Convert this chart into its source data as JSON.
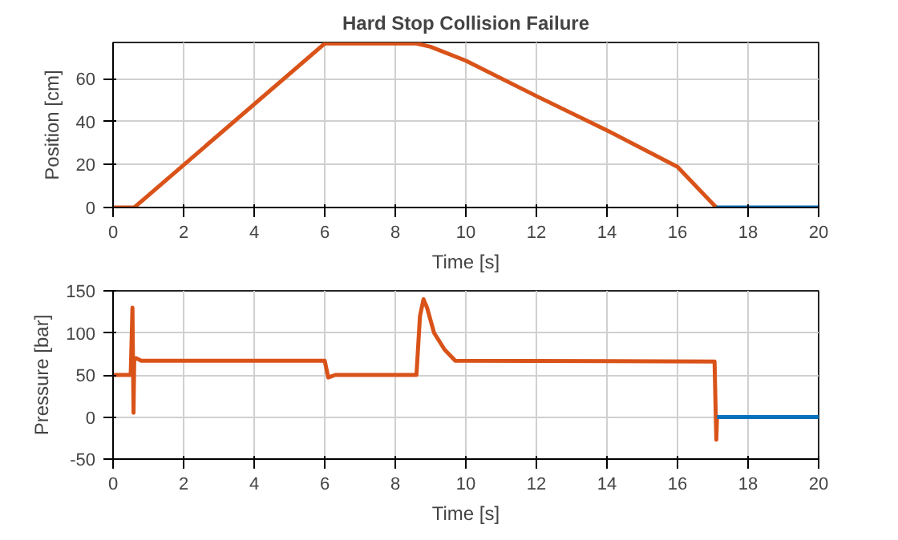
{
  "chart_data": [
    {
      "type": "line",
      "title": "Hard Stop Collision Failure",
      "xlabel": "Time [s]",
      "ylabel": "Position [cm]",
      "xlim": [
        0,
        20
      ],
      "ylim": [
        0,
        77
      ],
      "xticks": [
        0,
        2,
        4,
        6,
        8,
        10,
        12,
        14,
        16,
        18,
        20
      ],
      "yticks": [
        0,
        20,
        40,
        60
      ],
      "grid": true,
      "series": [
        {
          "color": "#d95319",
          "x": [
            0,
            0.6,
            6.0,
            8.6,
            9.0,
            10,
            12,
            14,
            16,
            17.1
          ],
          "values": [
            0,
            0,
            76.5,
            76.5,
            75,
            68.5,
            52,
            36,
            19,
            0
          ]
        },
        {
          "color": "#0072bd",
          "x": [
            17.1,
            20
          ],
          "values": [
            0,
            0
          ]
        }
      ]
    },
    {
      "type": "line",
      "xlabel": "Time [s]",
      "ylabel": "Pressure [bar]",
      "xlim": [
        0,
        20
      ],
      "ylim": [
        -50,
        150
      ],
      "xticks": [
        0,
        2,
        4,
        6,
        8,
        10,
        12,
        14,
        16,
        18,
        20
      ],
      "yticks": [
        -50,
        0,
        50,
        100,
        150
      ],
      "grid": true,
      "series": [
        {
          "color": "#d95319",
          "x": [
            0,
            0.5,
            0.55,
            0.58,
            0.6,
            0.65,
            0.8,
            6.0,
            6.1,
            6.3,
            8.6,
            8.7,
            8.8,
            8.9,
            9.1,
            9.4,
            9.7,
            17.05,
            17.1,
            17.12
          ],
          "values": [
            50,
            50,
            130,
            5,
            68,
            70,
            67,
            67,
            47,
            50,
            50,
            120,
            140,
            130,
            100,
            80,
            67,
            66,
            -27,
            0
          ]
        },
        {
          "color": "#0072bd",
          "x": [
            17.12,
            20
          ],
          "values": [
            0,
            0
          ]
        }
      ]
    }
  ]
}
